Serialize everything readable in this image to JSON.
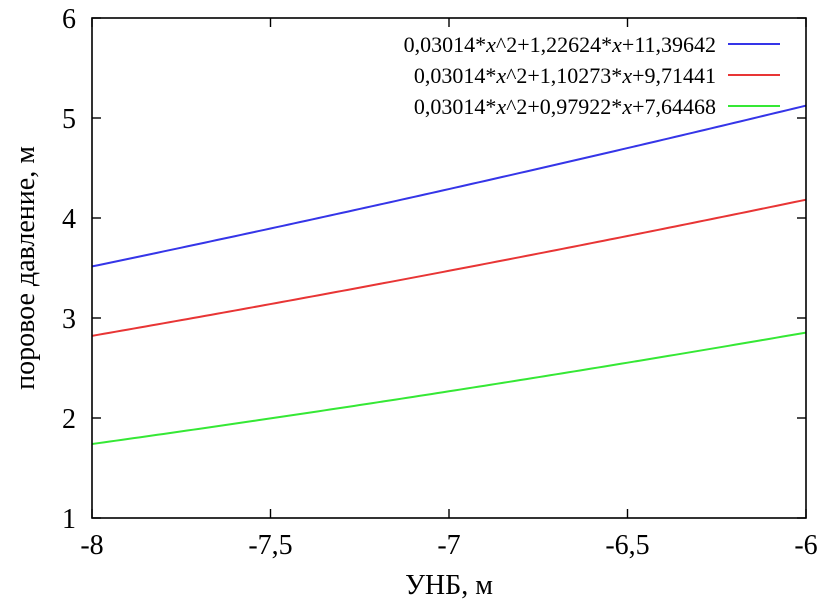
{
  "chart_data": {
    "type": "line",
    "title": "",
    "xlabel": "УНБ, м",
    "ylabel": "поровое давление, м",
    "xlim": [
      -8,
      -6
    ],
    "ylim": [
      1,
      6
    ],
    "xticks": [
      -8,
      -7.5,
      -7,
      -6.5,
      -6
    ],
    "yticks": [
      1,
      2,
      3,
      4,
      5,
      6
    ],
    "x_tick_labels": [
      "-8",
      "-7,5",
      "-7",
      "-6,5",
      "-6"
    ],
    "y_tick_labels": [
      "1",
      "2",
      "3",
      "4",
      "5",
      "6"
    ],
    "grid": false,
    "legend_position": "top-right",
    "series": [
      {
        "name": "0,03014*x^2+1,22624*x+11,39642",
        "color": "#3535e8",
        "coefficients": [
          0.03014,
          1.22624,
          11.39642
        ]
      },
      {
        "name": "0,03014*x^2+1,10273*x+9,71441",
        "color": "#e83535",
        "coefficients": [
          0.03014,
          1.10273,
          9.71441
        ]
      },
      {
        "name": "0,03014*x^2+0,97922*x+7,64468",
        "color": "#35e835",
        "coefficients": [
          0.03014,
          0.97922,
          7.64468
        ]
      }
    ]
  }
}
